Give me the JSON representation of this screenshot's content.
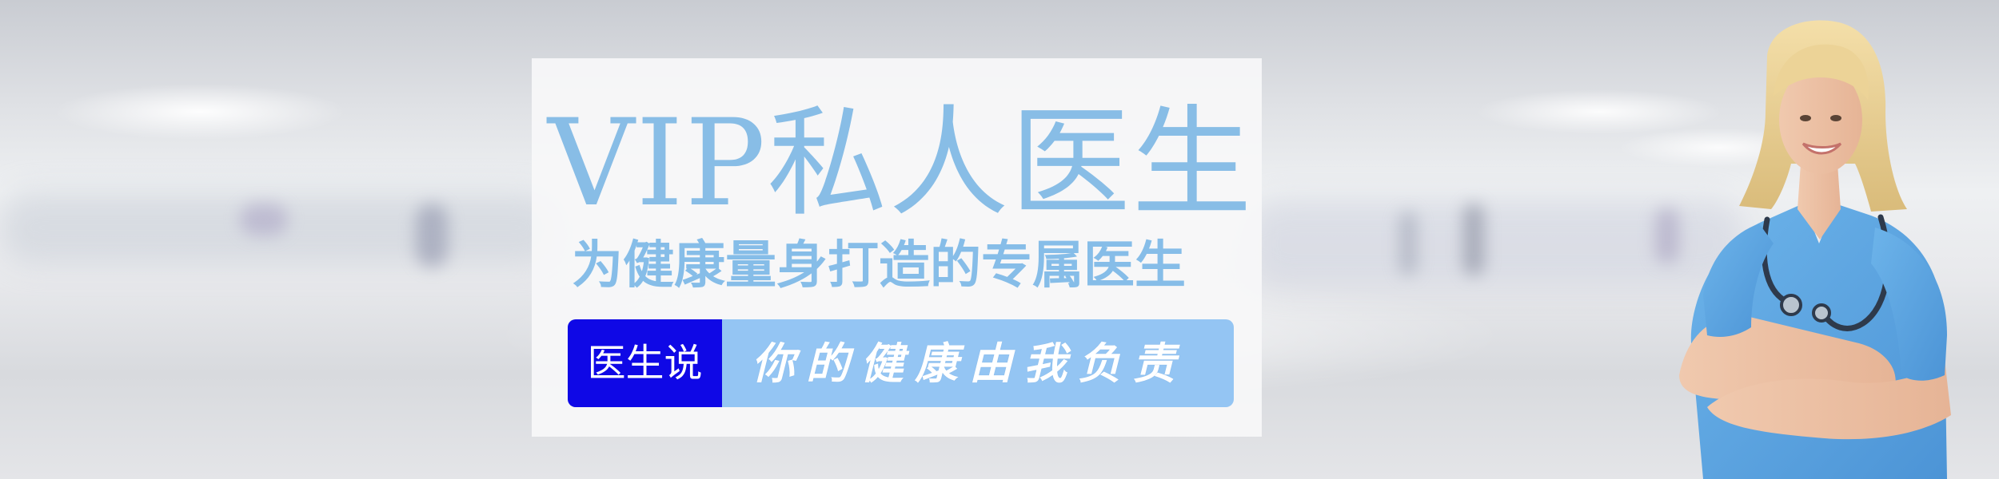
{
  "banner": {
    "headline": "VIP私人医生",
    "subline": "为健康量身打造的专属医生",
    "badge_label": "医生说",
    "quote_text": "你的健康由我负责"
  },
  "colors": {
    "headline": "#88bde6",
    "subline": "#86bde8",
    "badge_bg": "#0f08e6",
    "quote_bar_bg": "#94c5f3",
    "card_bg": "#f7f7f8",
    "scrubs": "#5fa8e3"
  },
  "icons": {
    "doctor": "doctor-photo",
    "stethoscope": "stethoscope-icon"
  }
}
